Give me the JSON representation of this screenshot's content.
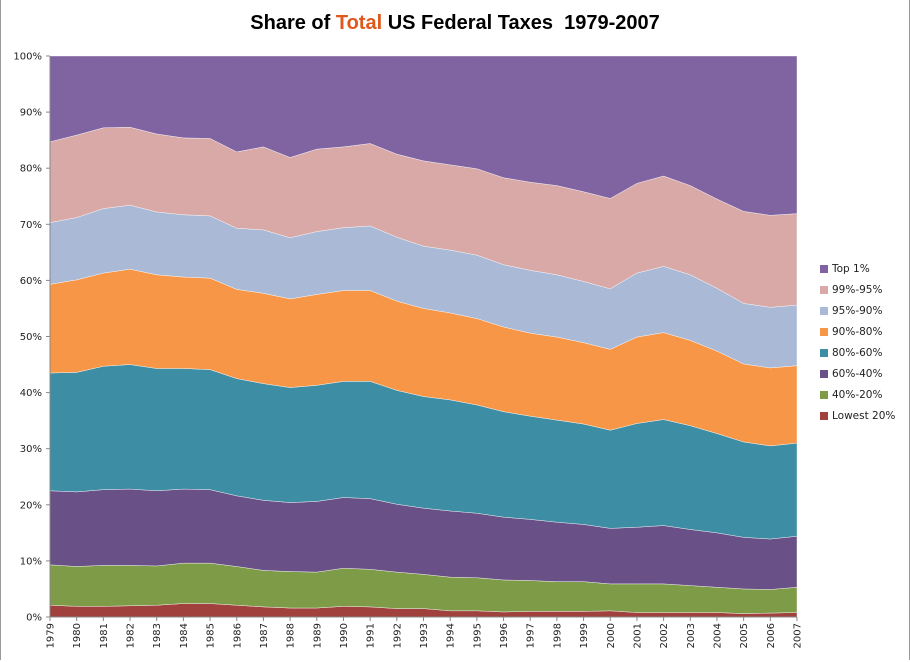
{
  "chart_data": {
    "type": "area",
    "stacked": true,
    "title_parts": [
      {
        "text": "Share of ",
        "color": "#000000"
      },
      {
        "text": "Total",
        "color": "#E0561B"
      },
      {
        "text": " US Federal Taxes  1979-2007",
        "color": "#000000"
      }
    ],
    "xlabel": "",
    "ylabel": "",
    "ylim": [
      0,
      100
    ],
    "y_ticks": [
      "0%",
      "10%",
      "20%",
      "30%",
      "40%",
      "50%",
      "60%",
      "70%",
      "80%",
      "90%",
      "100%"
    ],
    "grid": false,
    "legend_placement": "right",
    "x": [
      "1979",
      "1980",
      "1981",
      "1982",
      "1983",
      "1984",
      "1985",
      "1986",
      "1987",
      "1988",
      "1989",
      "1990",
      "1991",
      "1992",
      "1993",
      "1994",
      "1995",
      "1996",
      "1997",
      "1998",
      "1999",
      "2000",
      "2001",
      "2002",
      "2003",
      "2004",
      "2005",
      "2006",
      "2007"
    ],
    "series": [
      {
        "name": "Lowest 20%",
        "color": "#A0413D",
        "values": [
          2.1,
          1.9,
          1.9,
          2.0,
          2.1,
          2.4,
          2.4,
          2.1,
          1.8,
          1.6,
          1.6,
          1.9,
          1.8,
          1.5,
          1.5,
          1.1,
          1.1,
          0.9,
          1.0,
          1.0,
          1.0,
          1.1,
          0.8,
          0.8,
          0.8,
          0.8,
          0.6,
          0.7,
          0.8
        ]
      },
      {
        "name": "40%-20%",
        "color": "#7E9C48",
        "values": [
          7.2,
          7.1,
          7.3,
          7.2,
          7.0,
          7.2,
          7.2,
          6.9,
          6.5,
          6.5,
          6.4,
          6.8,
          6.7,
          6.5,
          6.1,
          6.0,
          5.9,
          5.7,
          5.5,
          5.3,
          5.3,
          4.8,
          5.1,
          5.1,
          4.8,
          4.5,
          4.4,
          4.2,
          4.5
        ]
      },
      {
        "name": "60%-40%",
        "color": "#695086",
        "values": [
          13.2,
          13.3,
          13.5,
          13.6,
          13.4,
          13.2,
          13.1,
          12.6,
          12.5,
          12.3,
          12.6,
          12.6,
          12.6,
          12.1,
          11.8,
          11.8,
          11.5,
          11.2,
          10.9,
          10.6,
          10.2,
          9.9,
          10.1,
          10.4,
          10.0,
          9.7,
          9.2,
          9.0,
          9.1
        ]
      },
      {
        "name": "80%-60%",
        "color": "#3D8DA5",
        "values": [
          21.0,
          21.3,
          22.0,
          22.2,
          21.8,
          21.5,
          21.4,
          20.9,
          20.8,
          20.5,
          20.7,
          20.7,
          20.9,
          20.3,
          19.9,
          19.8,
          19.3,
          18.8,
          18.4,
          18.2,
          17.9,
          17.5,
          18.5,
          18.9,
          18.5,
          17.7,
          17.0,
          16.6,
          16.6
        ]
      },
      {
        "name": "90%-80%",
        "color": "#F79646",
        "values": [
          15.8,
          16.5,
          16.6,
          17.0,
          16.7,
          16.3,
          16.3,
          15.9,
          16.1,
          15.8,
          16.2,
          16.2,
          16.2,
          15.9,
          15.7,
          15.5,
          15.4,
          15.1,
          14.8,
          14.8,
          14.5,
          14.4,
          15.4,
          15.5,
          15.2,
          14.7,
          13.9,
          13.9,
          13.8
        ]
      },
      {
        "name": "95%-90%",
        "color": "#A9B9D6",
        "values": [
          11.0,
          11.1,
          11.5,
          11.4,
          11.2,
          11.1,
          11.1,
          10.9,
          11.3,
          10.9,
          11.2,
          11.2,
          11.5,
          11.4,
          11.1,
          11.2,
          11.3,
          11.1,
          11.2,
          11.1,
          10.9,
          10.8,
          11.4,
          11.8,
          11.7,
          11.2,
          10.8,
          10.8,
          10.8
        ]
      },
      {
        "name": "99%-95%",
        "color": "#D9A9A7",
        "values": [
          14.4,
          14.7,
          14.4,
          13.9,
          13.9,
          13.7,
          13.8,
          13.6,
          14.8,
          14.3,
          14.7,
          14.4,
          14.7,
          14.8,
          15.2,
          15.2,
          15.4,
          15.5,
          15.7,
          15.9,
          16.0,
          16.1,
          16.0,
          16.1,
          15.9,
          15.9,
          16.4,
          16.4,
          16.3
        ]
      },
      {
        "name": "Top 1%",
        "color": "#8064A2",
        "values": [
          15.3,
          14.1,
          12.8,
          12.7,
          13.9,
          14.6,
          14.7,
          17.1,
          16.2,
          18.1,
          16.6,
          16.2,
          15.6,
          17.5,
          18.7,
          19.4,
          20.1,
          21.7,
          22.5,
          23.1,
          24.2,
          25.4,
          22.7,
          21.4,
          23.1,
          25.5,
          27.7,
          28.4,
          28.1
        ]
      }
    ]
  }
}
